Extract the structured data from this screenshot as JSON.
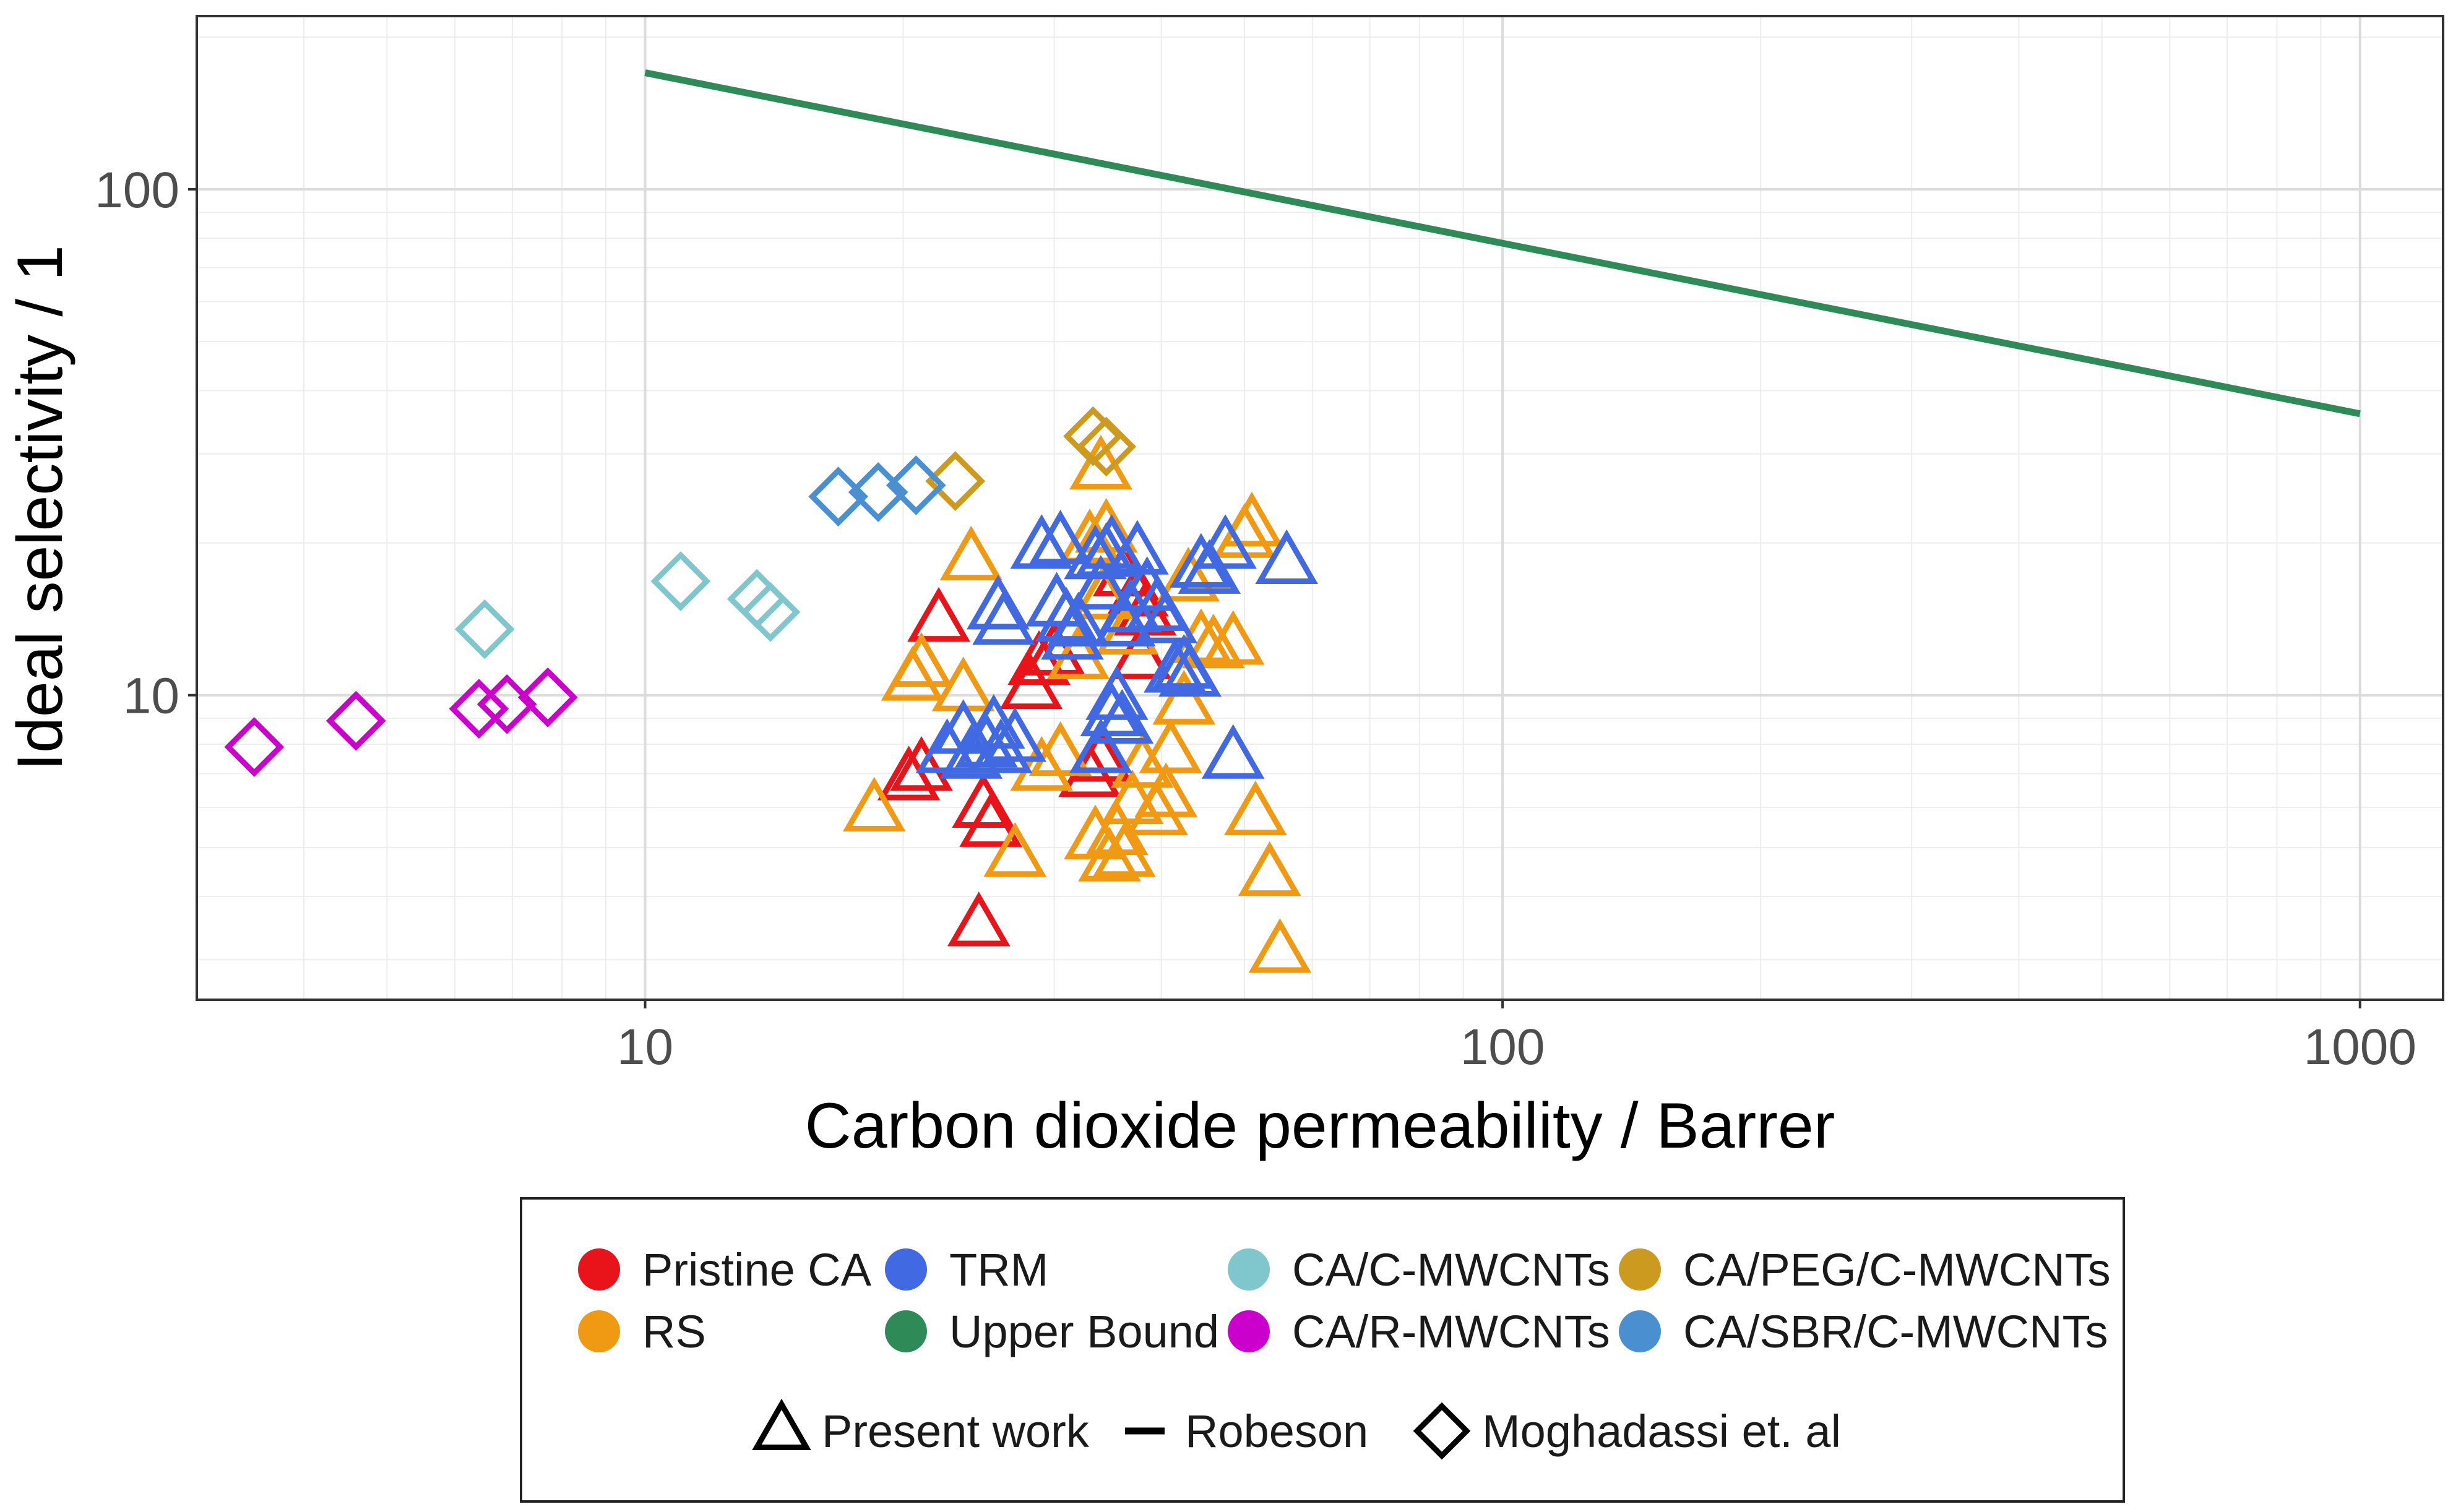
{
  "chart_data": {
    "type": "scatter",
    "title": "",
    "xlabel": "Carbon dioxide permeability / Barrer",
    "ylabel": "Ideal selectivity / 1",
    "x_scale": "log",
    "y_scale": "log",
    "xlim": [
      3.0,
      1250
    ],
    "ylim": [
      2.5,
      220
    ],
    "x_ticks": [
      {
        "value": 10,
        "label": "10"
      },
      {
        "value": 100,
        "label": "100"
      },
      {
        "value": 1000,
        "label": "1000"
      }
    ],
    "y_ticks": [
      {
        "value": 10,
        "label": "10"
      },
      {
        "value": 100,
        "label": "100"
      }
    ],
    "grid": true,
    "legend_placement": "bottom",
    "legend": {
      "color_entries": [
        {
          "name": "Pristine CA",
          "color": "#e8141a"
        },
        {
          "name": "TRM",
          "color": "#4169e1"
        },
        {
          "name": "CA/C-MWCNTs",
          "color": "#7fc7cc"
        },
        {
          "name": "CA/PEG/C-MWCNTs",
          "color": "#cc9a1e"
        },
        {
          "name": "RS",
          "color": "#f09a14"
        },
        {
          "name": "Upper Bound",
          "color": "#2e8b57"
        },
        {
          "name": "CA/R-MWCNTs",
          "color": "#cc00cc"
        },
        {
          "name": "CA/SBR/C-MWCNTs",
          "color": "#4a90d0"
        }
      ],
      "shape_entries": [
        {
          "name": "Present work",
          "shape": "triangle-icon"
        },
        {
          "name": "Robeson",
          "shape": "line-icon"
        },
        {
          "name": "Moghadassi et. al",
          "shape": "diamond-icon"
        }
      ]
    },
    "series": [
      {
        "name": "Pristine CA",
        "shape": "triangle",
        "color": "#e8141a",
        "points": [
          [
            20.3,
            6.8
          ],
          [
            21,
            7.1
          ],
          [
            24.8,
            6.0
          ],
          [
            25.3,
            5.5
          ],
          [
            24.5,
            3.5
          ],
          [
            22,
            14
          ],
          [
            28.2,
            10.3
          ],
          [
            28.8,
            11.5
          ],
          [
            30,
            12
          ],
          [
            33,
            6.9
          ],
          [
            34,
            7.4
          ],
          [
            36.2,
            17.2
          ],
          [
            37.5,
            15.7
          ],
          [
            38.3,
            14.4
          ],
          [
            37.8,
            11.8
          ]
        ]
      },
      {
        "name": "RS",
        "shape": "triangle",
        "color": "#f09a14",
        "points": [
          [
            18.5,
            5.9
          ],
          [
            20.5,
            10.7
          ],
          [
            21,
            11.4
          ],
          [
            23.5,
            10.2
          ],
          [
            24,
            18.5
          ],
          [
            27,
            4.8
          ],
          [
            29,
            7.1
          ],
          [
            30.5,
            7.6
          ],
          [
            32,
            11.8
          ],
          [
            33,
            20
          ],
          [
            34,
            28
          ],
          [
            34.5,
            21
          ],
          [
            33.5,
            5.2
          ],
          [
            34.8,
            4.7
          ],
          [
            35.5,
            5.3
          ],
          [
            36.2,
            4.8
          ],
          [
            37,
            6.1
          ],
          [
            38,
            7.2
          ],
          [
            39.5,
            5.8
          ],
          [
            40.5,
            6.3
          ],
          [
            41,
            7.7
          ],
          [
            42.5,
            9.6
          ],
          [
            43,
            16.8
          ],
          [
            44.5,
            12.7
          ],
          [
            46,
            12.4
          ],
          [
            48.5,
            12.6
          ],
          [
            50,
            20.5
          ],
          [
            51,
            21.6
          ],
          [
            51.5,
            5.8
          ],
          [
            53.5,
            4.4
          ],
          [
            55,
            3.1
          ],
          [
            34.2,
            15.5
          ],
          [
            36.5,
            13.2
          ]
        ]
      },
      {
        "name": "TRM",
        "shape": "triangle",
        "color": "#4169e1",
        "points": [
          [
            22.5,
            7.7
          ],
          [
            23.5,
            8.4
          ],
          [
            24,
            7.5
          ],
          [
            25,
            7.9
          ],
          [
            25.5,
            8.6
          ],
          [
            26,
            7.7
          ],
          [
            27,
            8.1
          ],
          [
            25.8,
            14.8
          ],
          [
            26.2,
            13.8
          ],
          [
            29,
            19.5
          ],
          [
            30.5,
            19.9
          ],
          [
            30.2,
            15
          ],
          [
            31,
            14
          ],
          [
            31.5,
            12.9
          ],
          [
            32,
            13.7
          ],
          [
            33.5,
            18.6
          ],
          [
            34,
            16.2
          ],
          [
            34.5,
            18.8
          ],
          [
            35,
            19.5
          ],
          [
            34,
            7.7
          ],
          [
            35,
            9.1
          ],
          [
            35.5,
            9.8
          ],
          [
            36,
            8.8
          ],
          [
            36.2,
            13.7
          ],
          [
            36.8,
            14.6
          ],
          [
            37.5,
            19
          ],
          [
            38.5,
            16.1
          ],
          [
            39.5,
            14.7
          ],
          [
            40.5,
            13.9
          ],
          [
            41.5,
            11.1
          ],
          [
            42.5,
            11.3
          ],
          [
            43.2,
            10.9
          ],
          [
            44.5,
            17.9
          ],
          [
            45.5,
            17.4
          ],
          [
            47.5,
            19.5
          ],
          [
            48.5,
            7.5
          ],
          [
            56,
            18.2
          ]
        ]
      },
      {
        "name": "CA/C-MWCNTs",
        "shape": "diamond",
        "color": "#7fc7cc",
        "points": [
          [
            6.5,
            13.5
          ],
          [
            11,
            16.8
          ],
          [
            13.5,
            15.5
          ],
          [
            14,
            14.6
          ]
        ]
      },
      {
        "name": "CA/PEG/C-MWCNTs",
        "shape": "diamond",
        "color": "#cc9a1e",
        "points": [
          [
            23,
            26.5
          ],
          [
            33.3,
            32.5
          ],
          [
            34.5,
            31
          ]
        ]
      },
      {
        "name": "CA/R-MWCNTs",
        "shape": "diamond",
        "color": "#cc00cc",
        "points": [
          [
            3.5,
            7.9
          ],
          [
            4.6,
            8.9
          ],
          [
            6.4,
            9.4
          ],
          [
            6.9,
            9.6
          ],
          [
            7.7,
            9.9
          ]
        ]
      },
      {
        "name": "CA/SBR/C-MWCNTs",
        "shape": "diamond",
        "color": "#4a90d0",
        "points": [
          [
            16.8,
            24.7
          ],
          [
            18.7,
            25.2
          ],
          [
            20.7,
            26
          ]
        ]
      },
      {
        "name": "Upper Bound",
        "shape": "line",
        "color": "#2e8b57",
        "points": [
          [
            10,
            170
          ],
          [
            1000,
            36
          ]
        ]
      }
    ]
  }
}
